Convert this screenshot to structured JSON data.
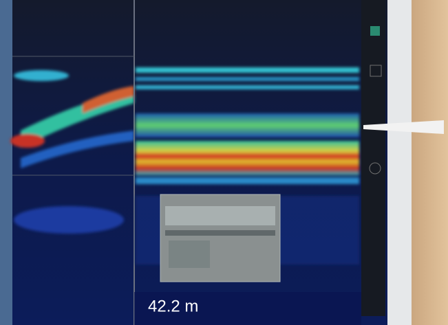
{
  "screen": {
    "depth_readout": "42.2 m"
  }
}
